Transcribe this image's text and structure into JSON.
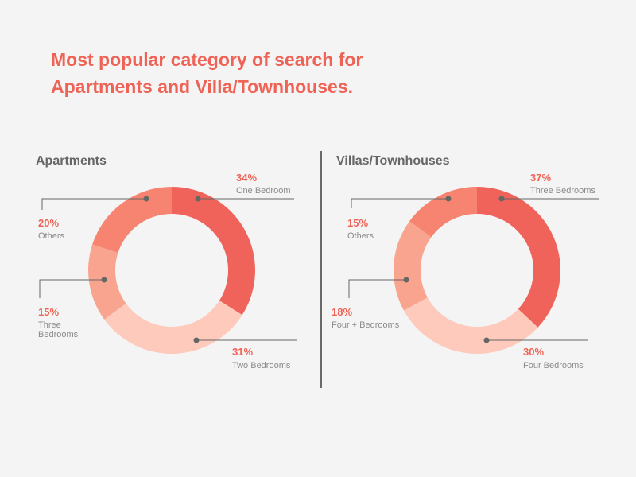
{
  "title": {
    "line1": "Most popular category of search for",
    "line2": "Apartments and Villa/Townhouses."
  },
  "colors": {
    "accent": "#ee6355",
    "segments": [
      "#f0635a",
      "#fdcabb",
      "#f9a48f",
      "#f68470"
    ],
    "leader": "#666666"
  },
  "chart_data": [
    {
      "type": "pie",
      "title": "Apartments",
      "slices": [
        {
          "label": "One Bedroom",
          "value": 34,
          "display": "34%"
        },
        {
          "label": "Two Bedrooms",
          "value": 31,
          "display": "31%"
        },
        {
          "label": "Three Bedrooms",
          "value": 15,
          "display": "15%",
          "label_lines": [
            "Three",
            "Bedrooms"
          ]
        },
        {
          "label": "Others",
          "value": 20,
          "display": "20%"
        }
      ]
    },
    {
      "type": "pie",
      "title": "Villas/Townhouses",
      "slices": [
        {
          "label": "Three Bedrooms",
          "value": 37,
          "display": "37%"
        },
        {
          "label": "Four Bedrooms",
          "value": 30,
          "display": "30%"
        },
        {
          "label": "Four + Bedrooms",
          "value": 18,
          "display": "18%"
        },
        {
          "label": "Others",
          "value": 15,
          "display": "15%"
        }
      ]
    }
  ]
}
